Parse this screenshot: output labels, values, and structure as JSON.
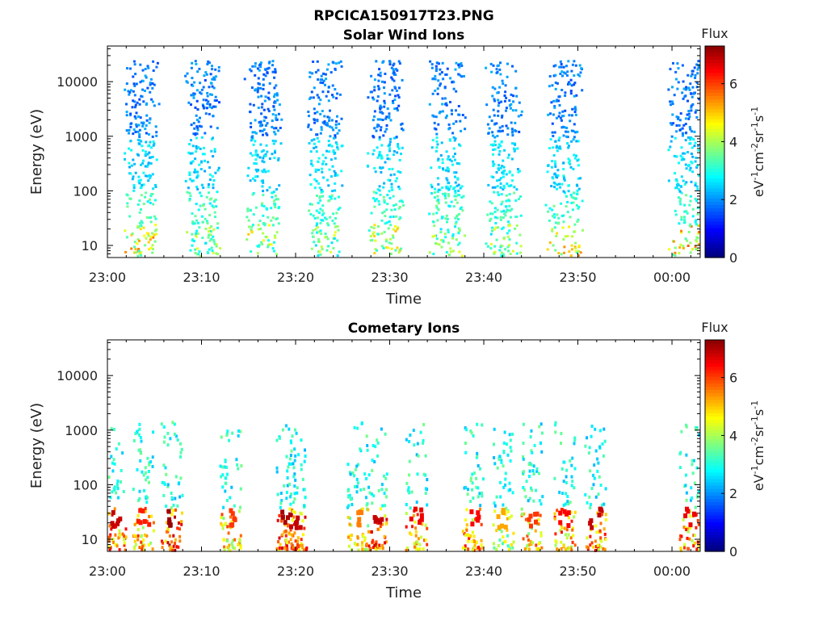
{
  "figure": {
    "title": "RPCICA150917T23.PNG"
  },
  "colormap": [
    "#00007f",
    "#0000ff",
    "#007fff",
    "#00ffff",
    "#7fff7f",
    "#ffff00",
    "#ff7f00",
    "#ff0000",
    "#7f0000"
  ],
  "chart_data": [
    {
      "type": "heatmap",
      "title": "Solar Wind Ions",
      "xlabel": "Time",
      "ylabel": "Energy (eV)",
      "x_ticks": [
        "23:00",
        "23:10",
        "23:20",
        "23:30",
        "23:40",
        "23:50",
        "00:00"
      ],
      "y_ticks": [
        "10",
        "100",
        "1000",
        "10000"
      ],
      "yscale": "log",
      "colorbar": {
        "label": "Flux",
        "unit_base": [
          "eV",
          "cm",
          "sr",
          "s"
        ],
        "unit_exp": [
          "-1",
          "-2",
          "-1",
          "-1"
        ],
        "ticks": [
          "0",
          "2",
          "4",
          "6"
        ],
        "range": [
          0,
          7.3
        ]
      },
      "bursts": [
        {
          "t": "23:03:30",
          "peak_flux": 5.6
        },
        {
          "t": "23:10:00",
          "peak_flux": 4.5
        },
        {
          "t": "23:16:30",
          "peak_flux": 5.0
        },
        {
          "t": "23:23:00",
          "peak_flux": 4.5
        },
        {
          "t": "23:29:30",
          "peak_flux": 5.0
        },
        {
          "t": "23:36:00",
          "peak_flux": 4.5
        },
        {
          "t": "23:42:00",
          "peak_flux": 4.5
        },
        {
          "t": "23:48:30",
          "peak_flux": 5.4
        },
        {
          "t": "00:01:30",
          "peak_flux": 5.8
        }
      ]
    },
    {
      "type": "heatmap",
      "title": "Cometary Ions",
      "xlabel": "Time",
      "ylabel": "Energy (eV)",
      "x_ticks": [
        "23:00",
        "23:10",
        "23:20",
        "23:30",
        "23:40",
        "23:50",
        "00:00"
      ],
      "y_ticks": [
        "10",
        "100",
        "1000",
        "10000"
      ],
      "yscale": "log",
      "colorbar": {
        "label": "Flux",
        "unit_base": [
          "eV",
          "cm",
          "sr",
          "s"
        ],
        "unit_exp": [
          "-1",
          "-2",
          "-1",
          "-1"
        ],
        "ticks": [
          "0",
          "2",
          "4",
          "6"
        ],
        "range": [
          0,
          7.3
        ]
      },
      "bursts": [
        {
          "t": "23:00:45",
          "peak_flux": 6.8
        },
        {
          "t": "23:03:45",
          "peak_flux": 6.2
        },
        {
          "t": "23:06:45",
          "peak_flux": 7.1
        },
        {
          "t": "23:13:00",
          "peak_flux": 6.0
        },
        {
          "t": "23:19:00",
          "peak_flux": 7.0
        },
        {
          "t": "23:20:00",
          "peak_flux": 6.8
        },
        {
          "t": "23:26:30",
          "peak_flux": 5.5
        },
        {
          "t": "23:28:30",
          "peak_flux": 6.8
        },
        {
          "t": "23:32:45",
          "peak_flux": 6.5
        },
        {
          "t": "23:38:45",
          "peak_flux": 6.4
        },
        {
          "t": "23:42:00",
          "peak_flux": 5.2
        },
        {
          "t": "23:45:00",
          "peak_flux": 6.0
        },
        {
          "t": "23:48:30",
          "peak_flux": 6.4
        },
        {
          "t": "23:51:45",
          "peak_flux": 6.8
        },
        {
          "t": "00:01:50",
          "peak_flux": 6.5
        }
      ]
    }
  ]
}
